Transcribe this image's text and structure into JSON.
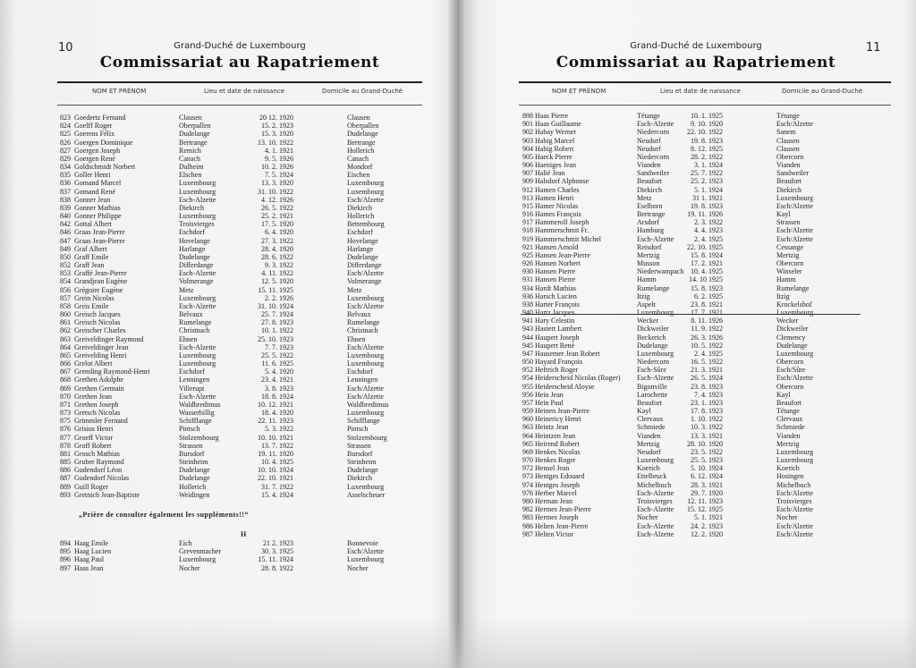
{
  "left_page": {
    "page_number": "10",
    "supertitle": "Grand-Duché de Luxembourg",
    "title": "Commissariat au Rapatriement",
    "columns": [
      "NOM ET PRÉNOM",
      "Lieu et date de naissance",
      "Domicile au Grand-Duché"
    ],
    "rows": [
      [
        "823",
        "Goedertz Fernand",
        "Clausen",
        "20 12. 1920",
        "Clausen"
      ],
      [
        "824",
        "Goelff Roger",
        "Oberpallen",
        "15. 2. 1923",
        "Oberpallen"
      ],
      [
        "825",
        "Goerens Félix",
        "Dudelange",
        "15. 3. 1920",
        "Dudelange"
      ],
      [
        "826",
        "Goergen Dominique",
        "Bertrange",
        "13. 10. 1922",
        "Bertrange"
      ],
      [
        "827",
        "Goergen Joseph",
        "Remich",
        "4. 1. 1921",
        "Hollerich"
      ],
      [
        "829",
        "Goergen René",
        "Canach",
        "9. 5. 1926",
        "Canach"
      ],
      [
        "834",
        "Goldschmidt Norbert",
        "Dalheim",
        "10. 2. 1926",
        "Mondorf"
      ],
      [
        "835",
        "Goller Henri",
        "Elschen",
        "7. 5. 1924",
        "Eischen"
      ],
      [
        "836",
        "Gomand Marcel",
        "Luxembourg",
        "13. 3. 1920",
        "Luxembourg"
      ],
      [
        "837",
        "Gomand René",
        "Luxembourg",
        "31. 10. 1922",
        "Luxembourg"
      ],
      [
        "838",
        "Gonner Jean",
        "Esch-Alzette",
        "4. 12. 1926",
        "Esch/Alzette"
      ],
      [
        "839",
        "Gonner Mathias",
        "Diekirch",
        "26. 5. 1922",
        "Diekirch"
      ],
      [
        "840",
        "Gonner Philippe",
        "Luxembourg",
        "25. 2. 1921",
        "Hollerich"
      ],
      [
        "842",
        "Gottal Albert",
        "Troisvierges",
        "17. 5. 1920",
        "Bettembourg"
      ],
      [
        "846",
        "Graas Jean-Pierre",
        "Eschdorf",
        "6. 4. 1920",
        "Eschdorf"
      ],
      [
        "847",
        "Graas Jean-Pierre",
        "Hovelange",
        "27. 3. 1922",
        "Hovelange"
      ],
      [
        "849",
        "Graf Albert",
        "Harlange",
        "28. 4. 1920",
        "Harlange"
      ],
      [
        "850",
        "Graff Emile",
        "Dudelange",
        "28. 6. 1922",
        "Dudelange"
      ],
      [
        "852",
        "Graff Jean",
        "Differdange",
        "9. 3. 1922",
        "Differdange"
      ],
      [
        "853",
        "Graffé Jean-Pierre",
        "Esch-Alzette",
        "4. 11. 1922",
        "Esch/Alzette"
      ],
      [
        "854",
        "Grandjean Eugène",
        "Volmerange",
        "12. 5. 1920",
        "Volmerange"
      ],
      [
        "856",
        "Grégoire Eugène",
        "Metz",
        "15. 11. 1925",
        "Metz"
      ],
      [
        "857",
        "Grein Nicolas",
        "Luxembourg",
        "2. 2. 1926",
        "Luxembourg"
      ],
      [
        "858",
        "Greis Emile",
        "Esch-Alzette",
        "31. 10. 1924",
        "Esch/Alzette"
      ],
      [
        "860",
        "Greisch Jacques",
        "Belvaux",
        "25. 7. 1924",
        "Belvaux"
      ],
      [
        "861",
        "Greisch Nicolas",
        "Rumelange",
        "27. 8. 1923",
        "Rumelange"
      ],
      [
        "862",
        "Greischer Charles",
        "Christnach",
        "10. 1. 1922",
        "Christnach"
      ],
      [
        "863",
        "Greiveldinger Raymond",
        "Ehnen",
        "25. 10. 1923",
        "Ehnen"
      ],
      [
        "864",
        "Greiveldinger Jean",
        "Esch-Alzette",
        "7. 7. 1923",
        "Esch/Alzette"
      ],
      [
        "865",
        "Greivelding Henri",
        "Luxembourg",
        "25. 5. 1922",
        "Luxembourg"
      ],
      [
        "866",
        "Grelot Albert",
        "Luxembourg",
        "11. 6. 1925",
        "Luxembourg"
      ],
      [
        "867",
        "Gremling Raymond-Henri",
        "Eschdorf",
        "5. 4. 1920",
        "Eschdorf"
      ],
      [
        "868",
        "Grethen Adolphe",
        "Lenningen",
        "23. 4. 1921",
        "Lenningen"
      ],
      [
        "869",
        "Grethen Germain",
        "Villerupt",
        "3. 8. 1923",
        "Esch/Alzette"
      ],
      [
        "870",
        "Grethen Jean",
        "Esch-Alzette",
        "18. 8. 1924",
        "Esch/Alzette"
      ],
      [
        "871",
        "Grethen Joseph",
        "Waldbredimus",
        "10. 12. 1921",
        "Waldbredimus"
      ],
      [
        "873",
        "Gretsch Nicolas",
        "Wasserbillig",
        "18. 4. 1920",
        "Luxembourg"
      ],
      [
        "875",
        "Grimmler Fernand",
        "Schifflange",
        "22. 11. 1923",
        "Schifflange"
      ],
      [
        "876",
        "Grisius Henri",
        "Pintsch",
        "5. 3. 1922",
        "Pintsch"
      ],
      [
        "877",
        "Groeff Victor",
        "Stolzembourg",
        "10. 10. 1921",
        "Stolzembourg"
      ],
      [
        "878",
        "Groff Robert",
        "Strassen",
        "13. 7. 1922",
        "Strassen"
      ],
      [
        "881",
        "Grosch Mathias",
        "Bursdorf",
        "19. 11. 1920",
        "Bursdorf"
      ],
      [
        "885",
        "Gruber Raymond",
        "Steinheim",
        "10. 4. 1925",
        "Steinheim"
      ],
      [
        "886",
        "Gudendorf Léon",
        "Dudelange",
        "10. 10. 1924",
        "Dudelange"
      ],
      [
        "887",
        "Gudendorf Nicolas",
        "Dudelange",
        "22. 10. 1921",
        "Diekirch"
      ],
      [
        "889",
        "Guill Roger",
        "Hollerich",
        "31. 7. 1922",
        "Luxembourg"
      ],
      [
        "893",
        "Gretnich Jean-Baptiste",
        "Weidingen",
        "15. 4. 1924",
        "Asselscheuer"
      ]
    ],
    "note": "„Prière de consulter également les suppléments!!“",
    "section_letter": "H",
    "rows_h": [
      [
        "894",
        "Haag Emile",
        "Eich",
        "21 2. 1923",
        "Bonnevoie"
      ],
      [
        "895",
        "Haag Lucien",
        "Grevenmacher",
        "30. 3. 1925",
        "Esch/Alzette"
      ],
      [
        "896",
        "Haag Paul",
        "Luxembourg",
        "15. 11. 1924",
        "Luxembourg"
      ],
      [
        "897",
        "Haas Jean",
        "Nocher",
        "28. 8. 1922",
        "Nocher"
      ]
    ]
  },
  "right_page": {
    "page_number": "11",
    "supertitle": "Grand-Duché de Luxembourg",
    "title": "Commissariat au Rapatriement",
    "columns": [
      "NOM ET PRÉNOM",
      "Lieu et date de naissance",
      "Domicile au Grand-Duché"
    ],
    "rows": [
      [
        "898",
        "Haas Pierre",
        "Tétange",
        "10. 1. 1925",
        "Tétange"
      ],
      [
        "901",
        "Haas Guillaume",
        "Esch-Alzette",
        "9. 10. 1920",
        "Esch/Alzette"
      ],
      [
        "902",
        "Habay Werner",
        "Niedercorn",
        "22. 10. 1922",
        "Sanem"
      ],
      [
        "903",
        "Habig Marcel",
        "Neudorf",
        "19. 8. 1923",
        "Clausen"
      ],
      [
        "904",
        "Habig Robert",
        "Neudorf",
        "8. 12. 1925",
        "Clausen"
      ],
      [
        "905",
        "Haeck Pierre",
        "Niedercorn",
        "28. 2. 1922",
        "Obercorn"
      ],
      [
        "906",
        "Haeniges Jean",
        "Vianden",
        "3. 1. 1924",
        "Vianden"
      ],
      [
        "907",
        "Halié Jean",
        "Sandweiler",
        "25. 7. 1922",
        "Sandweiler"
      ],
      [
        "909",
        "Halsdorf Alphonse",
        "Beaufort",
        "25. 2. 1923",
        "Beaufort"
      ],
      [
        "912",
        "Hamen Charles",
        "Diekirch",
        "5. 1. 1924",
        "Diekirch"
      ],
      [
        "913",
        "Hamen Henri",
        "Metz",
        "31 1. 1921",
        "Luxembourg"
      ],
      [
        "915",
        "Hamer Nicolas",
        "Eselborn",
        "19. 8. 1923",
        "Esch/Alzette"
      ],
      [
        "916",
        "Hames François",
        "Bertrange",
        "19. 11. 1926",
        "Kayl"
      ],
      [
        "917",
        "Hammeroll Joseph",
        "Arsdorf",
        "2. 3. 1922",
        "Strassen"
      ],
      [
        "918",
        "Hammerschmit Fr.",
        "Hamburg",
        "4. 4. 1923",
        "Esch/Alzette"
      ],
      [
        "919",
        "Hammerschmit Michel",
        "Esch-Alzette",
        "2. 4. 1925",
        "Esch/Alzette"
      ],
      [
        "921",
        "Hansen Arnold",
        "Reisdorf",
        "22. 10. 1925",
        "Cessange"
      ],
      [
        "925",
        "Hansen Jean-Pierre",
        "Mertzig",
        "15. 8. 1924",
        "Mertzig"
      ],
      [
        "926",
        "Hansen Norbert",
        "Musson",
        "17. 2. 1921",
        "Obercorn"
      ],
      [
        "930",
        "Hansen Pierre",
        "Niederwampach",
        "10. 4. 1925",
        "Winseler"
      ],
      [
        "931",
        "Hansen Pierre",
        "Hamm",
        "14. 10 1925",
        "Hamm"
      ],
      [
        "934",
        "Hardt Mathias",
        "Rumelange",
        "15. 8. 1923",
        "Rumelange"
      ],
      [
        "936",
        "Harsch Lucien",
        "Itzig",
        "6. 2. 1925",
        "Itzig"
      ],
      [
        "938",
        "Harter François",
        "Aspelt",
        "23. 8. 1921",
        "Krockelshof"
      ],
      [
        "940",
        "Hartz Jacques",
        "Luxembourg",
        "17. 7. 1921",
        "Luxembourg"
      ],
      [
        "941",
        "Hary Celestin",
        "Wecker",
        "8. 11. 1926",
        "Wecker"
      ],
      [
        "943",
        "Hastert Lambert",
        "Dickweiler",
        "11. 9. 1922",
        "Dickweiler"
      ],
      [
        "944",
        "Haupert Joseph",
        "Beckerich",
        "26. 3. 1926",
        "Clemency"
      ],
      [
        "945",
        "Haupert René",
        "Dudelange",
        "10. 5. 1922",
        "Dudelange"
      ],
      [
        "947",
        "Hausemer Jean Robert",
        "Luxembourg",
        "2. 4. 1925",
        "Luxembourg"
      ],
      [
        "950",
        "Hayard François",
        "Niedercorn",
        "16. 5. 1922",
        "Obercorn"
      ],
      [
        "952",
        "Heftrich Roger",
        "Esch-Sûre",
        "21. 3. 1921",
        "Esch/Sûre"
      ],
      [
        "954",
        "Heiderscheid Nicolas (Roger)",
        "Esch-Alzette",
        "26. 5. 1924",
        "Esch/Alzette"
      ],
      [
        "955",
        "Heiderscheid Aloyse",
        "Bigonville",
        "23. 8. 1923",
        "Obercorn"
      ],
      [
        "956",
        "Hein Jean",
        "Larochette",
        "7. 4. 1923",
        "Kayl"
      ],
      [
        "957",
        "Hein Paul",
        "Beaufort",
        "23. 1. 1923",
        "Beaufort"
      ],
      [
        "959",
        "Heinen Jean-Pierre",
        "Kayl",
        "17. 8. 1923",
        "Tétange"
      ],
      [
        "960",
        "Heinericy Henri",
        "Clervaux",
        "1. 10. 1922",
        "Clervaux"
      ],
      [
        "963",
        "Heintz Jean",
        "Schmiede",
        "10. 3. 1922",
        "Schmiede"
      ],
      [
        "964",
        "Heintzen Jean",
        "Vianden",
        "13. 3. 1921",
        "Vianden"
      ],
      [
        "965",
        "Heirend Robert",
        "Mertzig",
        "28. 10. 1920",
        "Mertzig"
      ],
      [
        "969",
        "Henkes Nicolas",
        "Neudorf",
        "23. 5. 1922",
        "Luxembourg"
      ],
      [
        "970",
        "Henkes Roger",
        "Luxembourg",
        "25. 5. 1923",
        "Luxembourg"
      ],
      [
        "972",
        "Hensel Jean",
        "Koerich",
        "5. 10. 1924",
        "Koerich"
      ],
      [
        "973",
        "Hentges Edouard",
        "Ettelbruck",
        "6. 12. 1924",
        "Hosingen"
      ],
      [
        "974",
        "Hentges Joseph",
        "Michelbuch",
        "28. 3. 1921",
        "Michelbuch"
      ],
      [
        "976",
        "Herber Marcel",
        "Esch-Alzette",
        "29. 7. 1920",
        "Esch/Alzette"
      ],
      [
        "980",
        "Herman Jean",
        "Troisvierges",
        "12. 11. 1923",
        "Troisvierges"
      ],
      [
        "982",
        "Hermes Jean-Pierre",
        "Esch-Alzette",
        "15. 12. 1925",
        "Esch/Alzette"
      ],
      [
        "983",
        "Hermes Joseph",
        "Nocher",
        "5. 1. 1921",
        "Nocher"
      ],
      [
        "986",
        "Helten Jean-Pierre",
        "Esch-Alzette",
        "24. 2. 1923",
        "Esch/Alzette"
      ],
      [
        "987",
        "Helten Victor",
        "Esch-Alzette",
        "12. 2. 1920",
        "Esch/Alzette"
      ]
    ]
  }
}
